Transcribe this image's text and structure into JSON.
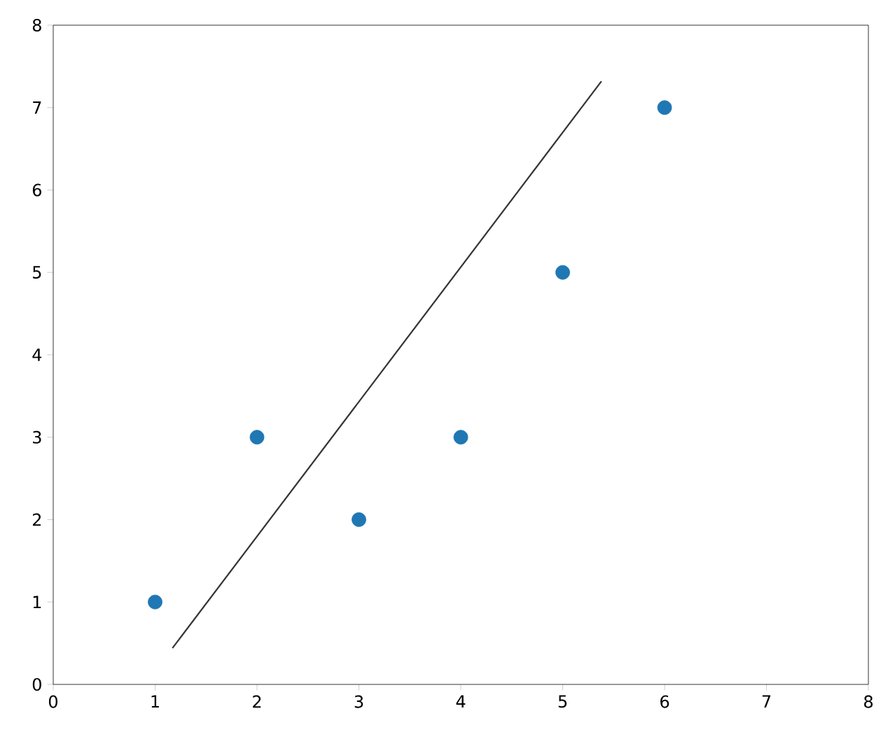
{
  "chart_data": {
    "type": "scatter",
    "x": [
      1,
      2,
      3,
      4,
      5,
      6
    ],
    "series": [
      {
        "color": "#1f77b4",
        "values": [
          1,
          3,
          2,
          3,
          5,
          7
        ],
        "marker": "circle"
      },
      {
        "type": "line",
        "x": [
          1.17,
          5.38
        ],
        "values": [
          0.44,
          7.32
        ],
        "color": "#333333",
        "marker": "none"
      }
    ],
    "xlim": [
      0,
      8
    ],
    "ylim": [
      0,
      8
    ],
    "xticks": [
      0,
      1,
      2,
      3,
      4,
      5,
      6,
      7,
      8
    ],
    "yticks": [
      0,
      1,
      2,
      3,
      4,
      5,
      6,
      7,
      8
    ]
  }
}
